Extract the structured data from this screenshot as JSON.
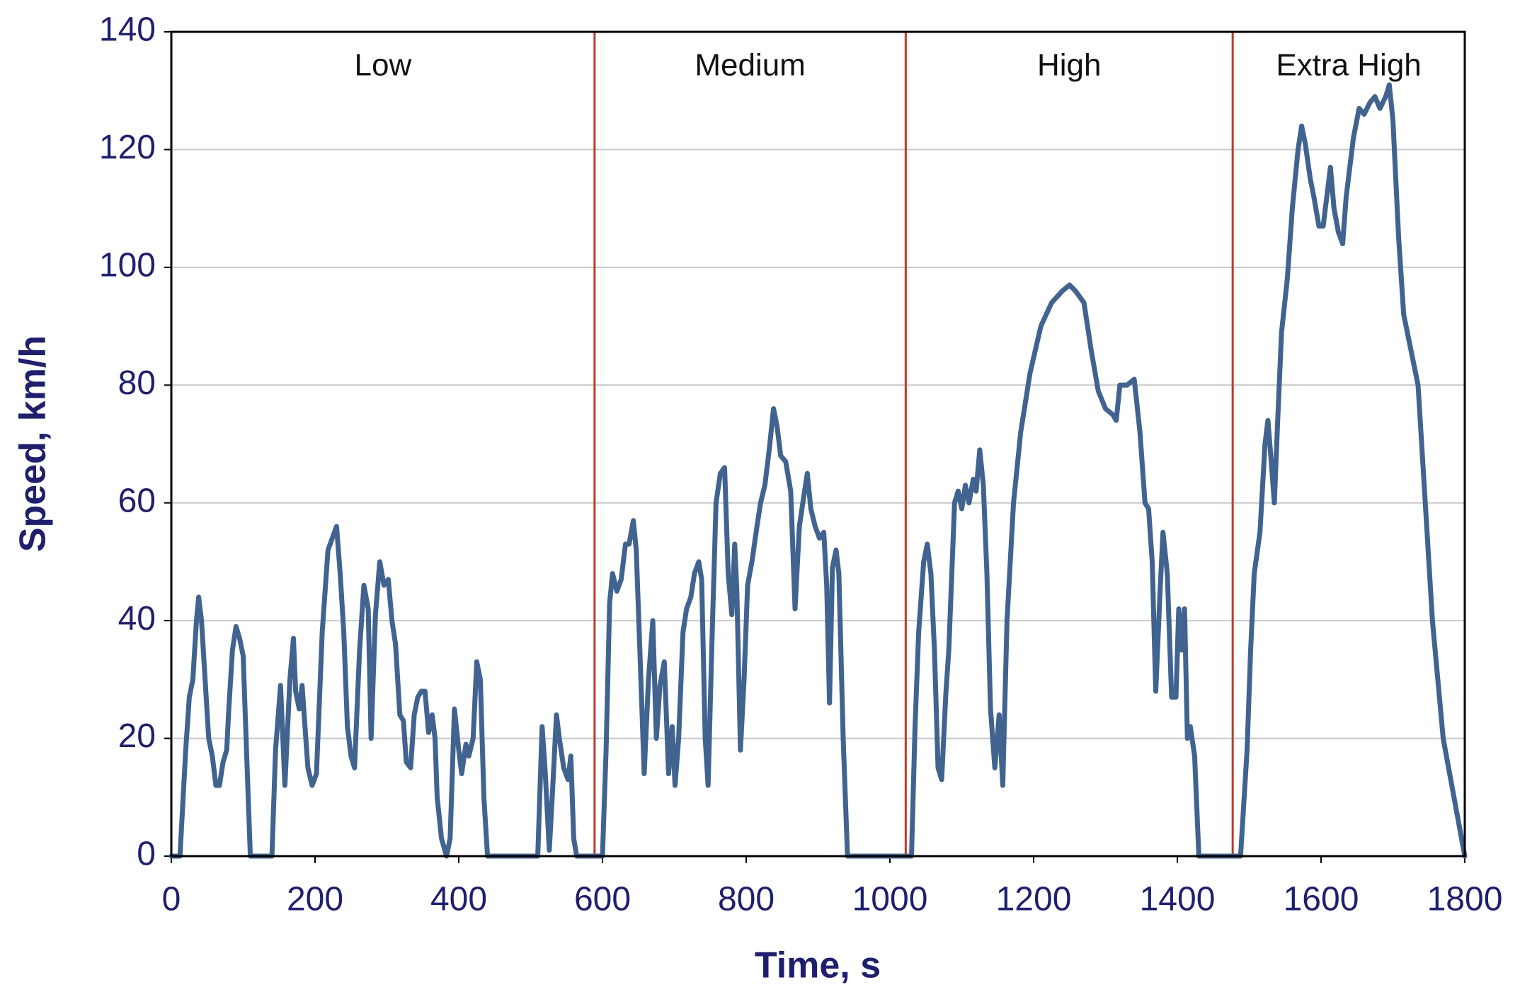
{
  "chart_data": {
    "type": "line",
    "xlabel": "Time, s",
    "ylabel": "Speed, km/h",
    "xlim": [
      0,
      1800
    ],
    "ylim": [
      0,
      140
    ],
    "xticks": [
      0,
      200,
      400,
      600,
      800,
      1000,
      1200,
      1400,
      1600,
      1800
    ],
    "yticks": [
      0,
      20,
      40,
      60,
      80,
      100,
      120,
      140
    ],
    "grid": true,
    "color": "#41638f",
    "phase_color": "#c0392b",
    "phase_labels": [
      "Low",
      "Medium",
      "High",
      "Extra High"
    ],
    "phase_boundaries": [
      589,
      1022,
      1477
    ],
    "x": [
      0,
      12,
      20,
      25,
      30,
      35,
      38,
      42,
      47,
      52,
      57,
      62,
      67,
      72,
      77,
      80,
      85,
      90,
      95,
      100,
      104,
      110,
      140,
      145,
      152,
      158,
      165,
      170,
      173,
      178,
      182,
      190,
      196,
      202,
      210,
      218,
      224,
      230,
      235,
      240,
      245,
      250,
      255,
      262,
      268,
      274,
      278,
      284,
      290,
      296,
      302,
      307,
      312,
      318,
      323,
      327,
      333,
      338,
      343,
      348,
      353,
      358,
      363,
      367,
      370,
      376,
      383,
      388,
      394,
      400,
      404,
      410,
      414,
      420,
      425,
      430,
      435,
      440,
      510,
      516,
      520,
      526,
      530,
      536,
      540,
      546,
      552,
      556,
      560,
      564,
      589,
      600,
      605,
      610,
      614,
      620,
      626,
      632,
      637,
      643,
      647,
      652,
      658,
      664,
      670,
      675,
      680,
      686,
      692,
      697,
      701,
      706,
      712,
      717,
      723,
      728,
      734,
      738,
      743,
      747,
      752,
      758,
      764,
      770,
      775,
      780,
      784,
      787,
      792,
      797,
      802,
      808,
      815,
      820,
      826,
      832,
      838,
      843,
      848,
      855,
      862,
      868,
      874,
      880,
      885,
      890,
      896,
      902,
      908,
      912,
      916,
      920,
      925,
      929,
      935,
      941,
      1022,
      1030,
      1035,
      1040,
      1047,
      1052,
      1057,
      1062,
      1067,
      1072,
      1078,
      1082,
      1090,
      1095,
      1100,
      1105,
      1110,
      1116,
      1120,
      1125,
      1130,
      1135,
      1140,
      1146,
      1152,
      1157,
      1163,
      1172,
      1182,
      1195,
      1210,
      1225,
      1240,
      1250,
      1258,
      1270,
      1280,
      1290,
      1300,
      1310,
      1315,
      1320,
      1330,
      1340,
      1348,
      1355,
      1360,
      1365,
      1370,
      1376,
      1380,
      1386,
      1392,
      1398,
      1402,
      1406,
      1410,
      1414,
      1418,
      1424,
      1430,
      1477,
      1488,
      1493,
      1497,
      1502,
      1507,
      1515,
      1522,
      1526,
      1530,
      1535,
      1540,
      1545,
      1553,
      1560,
      1568,
      1573,
      1578,
      1585,
      1590,
      1597,
      1603,
      1608,
      1613,
      1618,
      1624,
      1630,
      1635,
      1645,
      1653,
      1660,
      1668,
      1675,
      1682,
      1690,
      1695,
      1700,
      1708,
      1715,
      1725,
      1735,
      1745,
      1755,
      1770,
      1800
    ],
    "values": [
      0,
      0,
      18,
      27,
      30,
      40,
      44,
      40,
      30,
      20,
      17,
      12,
      12,
      16,
      18,
      25,
      35,
      39,
      37,
      34,
      20,
      0,
      0,
      18,
      29,
      12,
      30,
      37,
      28,
      25,
      29,
      15,
      12,
      14,
      38,
      52,
      54,
      56,
      48,
      38,
      22,
      17,
      15,
      35,
      46,
      42,
      20,
      41,
      50,
      46,
      47,
      40,
      36,
      24,
      23,
      16,
      15,
      24,
      27,
      28,
      28,
      21,
      24,
      20,
      10,
      3,
      0,
      3,
      25,
      18,
      14,
      19,
      17,
      20,
      33,
      30,
      10,
      0,
      0,
      22,
      15,
      1,
      10,
      24,
      20,
      15,
      13,
      17,
      3,
      0,
      0,
      0,
      18,
      43,
      48,
      45,
      47,
      53,
      53,
      57,
      52,
      35,
      14,
      30,
      40,
      20,
      29,
      33,
      14,
      22,
      12,
      20,
      38,
      42,
      44,
      48,
      50,
      47,
      20,
      12,
      35,
      60,
      65,
      66,
      48,
      41,
      53,
      45,
      18,
      30,
      46,
      50,
      56,
      60,
      63,
      69,
      76,
      73,
      68,
      67,
      62,
      42,
      56,
      61,
      65,
      59,
      56,
      54,
      55,
      46,
      26,
      49,
      52,
      48,
      20,
      0,
      0,
      0,
      22,
      38,
      50,
      53,
      48,
      35,
      15,
      13,
      28,
      35,
      60,
      62,
      59,
      63,
      60,
      64,
      62,
      69,
      63,
      48,
      25,
      15,
      24,
      12,
      40,
      60,
      72,
      82,
      90,
      94,
      96,
      97,
      96,
      94,
      86,
      79,
      76,
      75,
      74,
      80,
      80,
      81,
      72,
      60,
      59,
      50,
      28,
      45,
      55,
      48,
      27,
      27,
      42,
      35,
      42,
      20,
      22,
      17,
      0,
      0,
      0,
      10,
      18,
      35,
      48,
      55,
      70,
      74,
      68,
      60,
      75,
      89,
      98,
      110,
      120,
      124,
      121,
      115,
      112,
      107,
      107,
      112,
      117,
      110,
      106,
      104,
      112,
      122,
      127,
      126,
      128,
      129,
      127,
      129,
      131,
      125,
      105,
      92,
      86,
      80,
      60,
      40,
      20,
      0
    ]
  }
}
